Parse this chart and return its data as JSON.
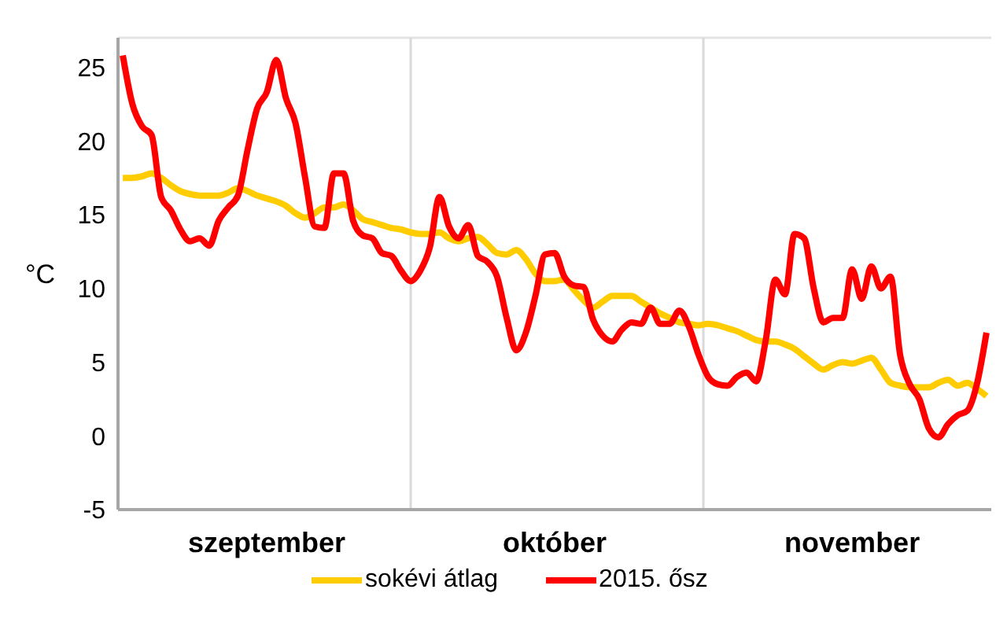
{
  "chart_data": {
    "type": "line",
    "ylabel": "°C",
    "categories": [
      null,
      null,
      null,
      null,
      null,
      null,
      null,
      null,
      null,
      null,
      null,
      null,
      null,
      null,
      null,
      "szeptember",
      null,
      null,
      null,
      null,
      null,
      null,
      null,
      null,
      null,
      null,
      null,
      null,
      null,
      null,
      null,
      null,
      null,
      null,
      null,
      null,
      null,
      null,
      null,
      null,
      null,
      null,
      null,
      null,
      null,
      "október",
      null,
      null,
      null,
      null,
      null,
      null,
      null,
      null,
      null,
      null,
      null,
      null,
      null,
      null,
      null,
      null,
      null,
      null,
      null,
      null,
      null,
      null,
      null,
      null,
      null,
      null,
      null,
      null,
      null,
      null,
      "november",
      null,
      null,
      null,
      null,
      null,
      null,
      null,
      null,
      null,
      null,
      null,
      null,
      null,
      null
    ],
    "ylim": [
      -5,
      27
    ],
    "yticks": [
      -5,
      0,
      5,
      10,
      15,
      20,
      25
    ],
    "grid": true,
    "legend": "bottom",
    "marker": "none",
    "line_style": "solid",
    "series": [
      {
        "name": "sokévi átlag",
        "color": "#ffcc00",
        "values": [
          17.5,
          17.5,
          17.6,
          17.8,
          17.5,
          17.0,
          16.6,
          16.4,
          16.3,
          16.3,
          16.3,
          16.5,
          16.8,
          16.6,
          16.3,
          16.1,
          15.9,
          15.6,
          15.1,
          14.8,
          15.1,
          15.5,
          15.5,
          15.7,
          15.3,
          14.7,
          14.5,
          14.3,
          14.1,
          14.0,
          13.8,
          13.7,
          13.7,
          13.8,
          13.4,
          13.2,
          13.4,
          13.5,
          13.0,
          12.4,
          12.3,
          12.6,
          12.0,
          11.0,
          10.5,
          10.5,
          10.6,
          9.9,
          9.2,
          8.7,
          9.1,
          9.5,
          9.5,
          9.5,
          9.1,
          8.7,
          8.3,
          8.0,
          7.7,
          7.6,
          7.5,
          7.6,
          7.5,
          7.3,
          7.1,
          6.8,
          6.5,
          6.4,
          6.4,
          6.2,
          5.9,
          5.4,
          4.9,
          4.5,
          4.8,
          5.0,
          4.9,
          5.1,
          5.3,
          4.5,
          3.6,
          3.4,
          3.3,
          3.3,
          3.3,
          3.6,
          3.8,
          3.4,
          3.6,
          3.2,
          2.7
        ]
      },
      {
        "name": "2015. ősz",
        "color": "#ff0000",
        "values": [
          25.8,
          22.5,
          21.0,
          20.4,
          16.2,
          15.3,
          14.0,
          13.2,
          13.4,
          12.9,
          14.6,
          15.5,
          16.3,
          19.4,
          22.2,
          23.3,
          25.5,
          22.9,
          21.2,
          17.5,
          14.2,
          14.1,
          17.8,
          17.8,
          14.6,
          13.6,
          13.4,
          12.4,
          12.2,
          11.2,
          10.5,
          11.2,
          12.8,
          16.2,
          14.2,
          13.4,
          14.3,
          12.2,
          11.8,
          10.8,
          8.0,
          5.8,
          7.0,
          9.5,
          12.3,
          12.4,
          10.8,
          10.2,
          10.1,
          7.9,
          6.8,
          6.4,
          7.2,
          7.7,
          7.6,
          8.7,
          7.6,
          7.6,
          8.5,
          7.4,
          5.5,
          4.0,
          3.5,
          3.4,
          4.0,
          4.3,
          3.7,
          6.5,
          10.6,
          9.6,
          13.7,
          13.4,
          10.0,
          7.7,
          8.0,
          8.0,
          11.3,
          9.3,
          11.5,
          10.0,
          10.8,
          5.5,
          3.5,
          2.5,
          0.5,
          -0.1,
          0.8,
          1.4,
          1.7,
          3.5,
          7.0
        ]
      }
    ]
  }
}
